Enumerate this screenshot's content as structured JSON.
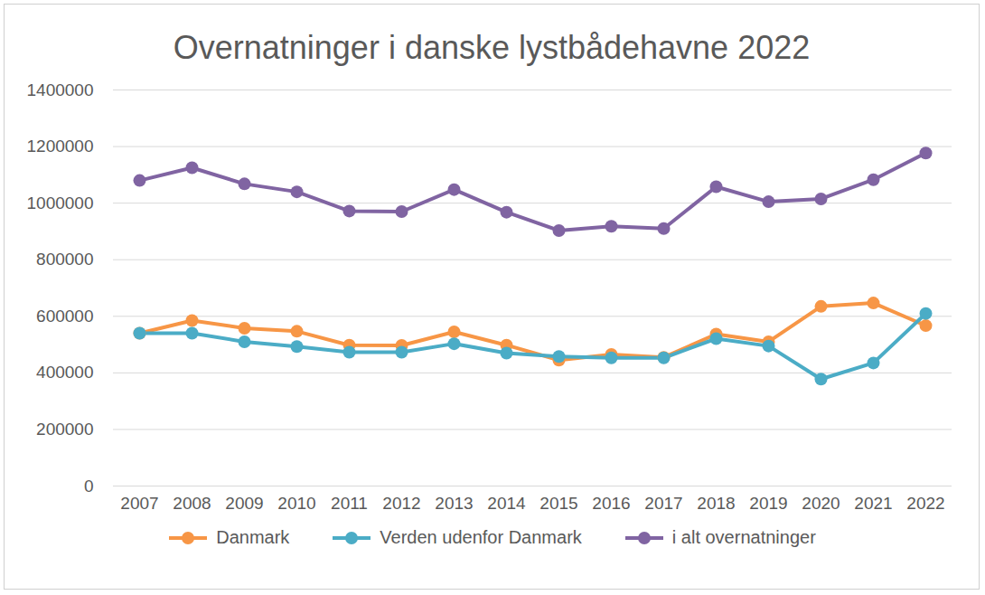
{
  "chart_data": {
    "type": "line",
    "title": "Overnatninger i danske lystbådehavne 2022",
    "categories": [
      "2007",
      "2008",
      "2009",
      "2010",
      "2011",
      "2012",
      "2013",
      "2014",
      "2015",
      "2016",
      "2017",
      "2018",
      "2019",
      "2020",
      "2021",
      "2022"
    ],
    "series": [
      {
        "name": "Danmark",
        "color": "#F79646",
        "marker": "circle",
        "values": [
          540000,
          585000,
          558000,
          547000,
          498000,
          497000,
          545000,
          498000,
          445000,
          465000,
          455000,
          537000,
          510000,
          635000,
          647000,
          567000
        ]
      },
      {
        "name": "Verden udenfor Danmark",
        "color": "#4BACC6",
        "marker": "circle",
        "values": [
          540000,
          540000,
          510000,
          493000,
          473000,
          473000,
          503000,
          470000,
          458000,
          453000,
          453000,
          521000,
          495000,
          378000,
          435000,
          610000
        ]
      },
      {
        "name": "i alt overnatninger",
        "color": "#8064A2",
        "marker": "circle",
        "values": [
          1080000,
          1125000,
          1068000,
          1040000,
          972000,
          970000,
          1048000,
          968000,
          903000,
          918000,
          910000,
          1058000,
          1005000,
          1015000,
          1083000,
          1177000
        ]
      }
    ],
    "ylim": [
      0,
      1400000
    ],
    "yticks": [
      0,
      200000,
      400000,
      600000,
      800000,
      1000000,
      1200000,
      1400000
    ],
    "grid": true,
    "legend": "bottom"
  }
}
